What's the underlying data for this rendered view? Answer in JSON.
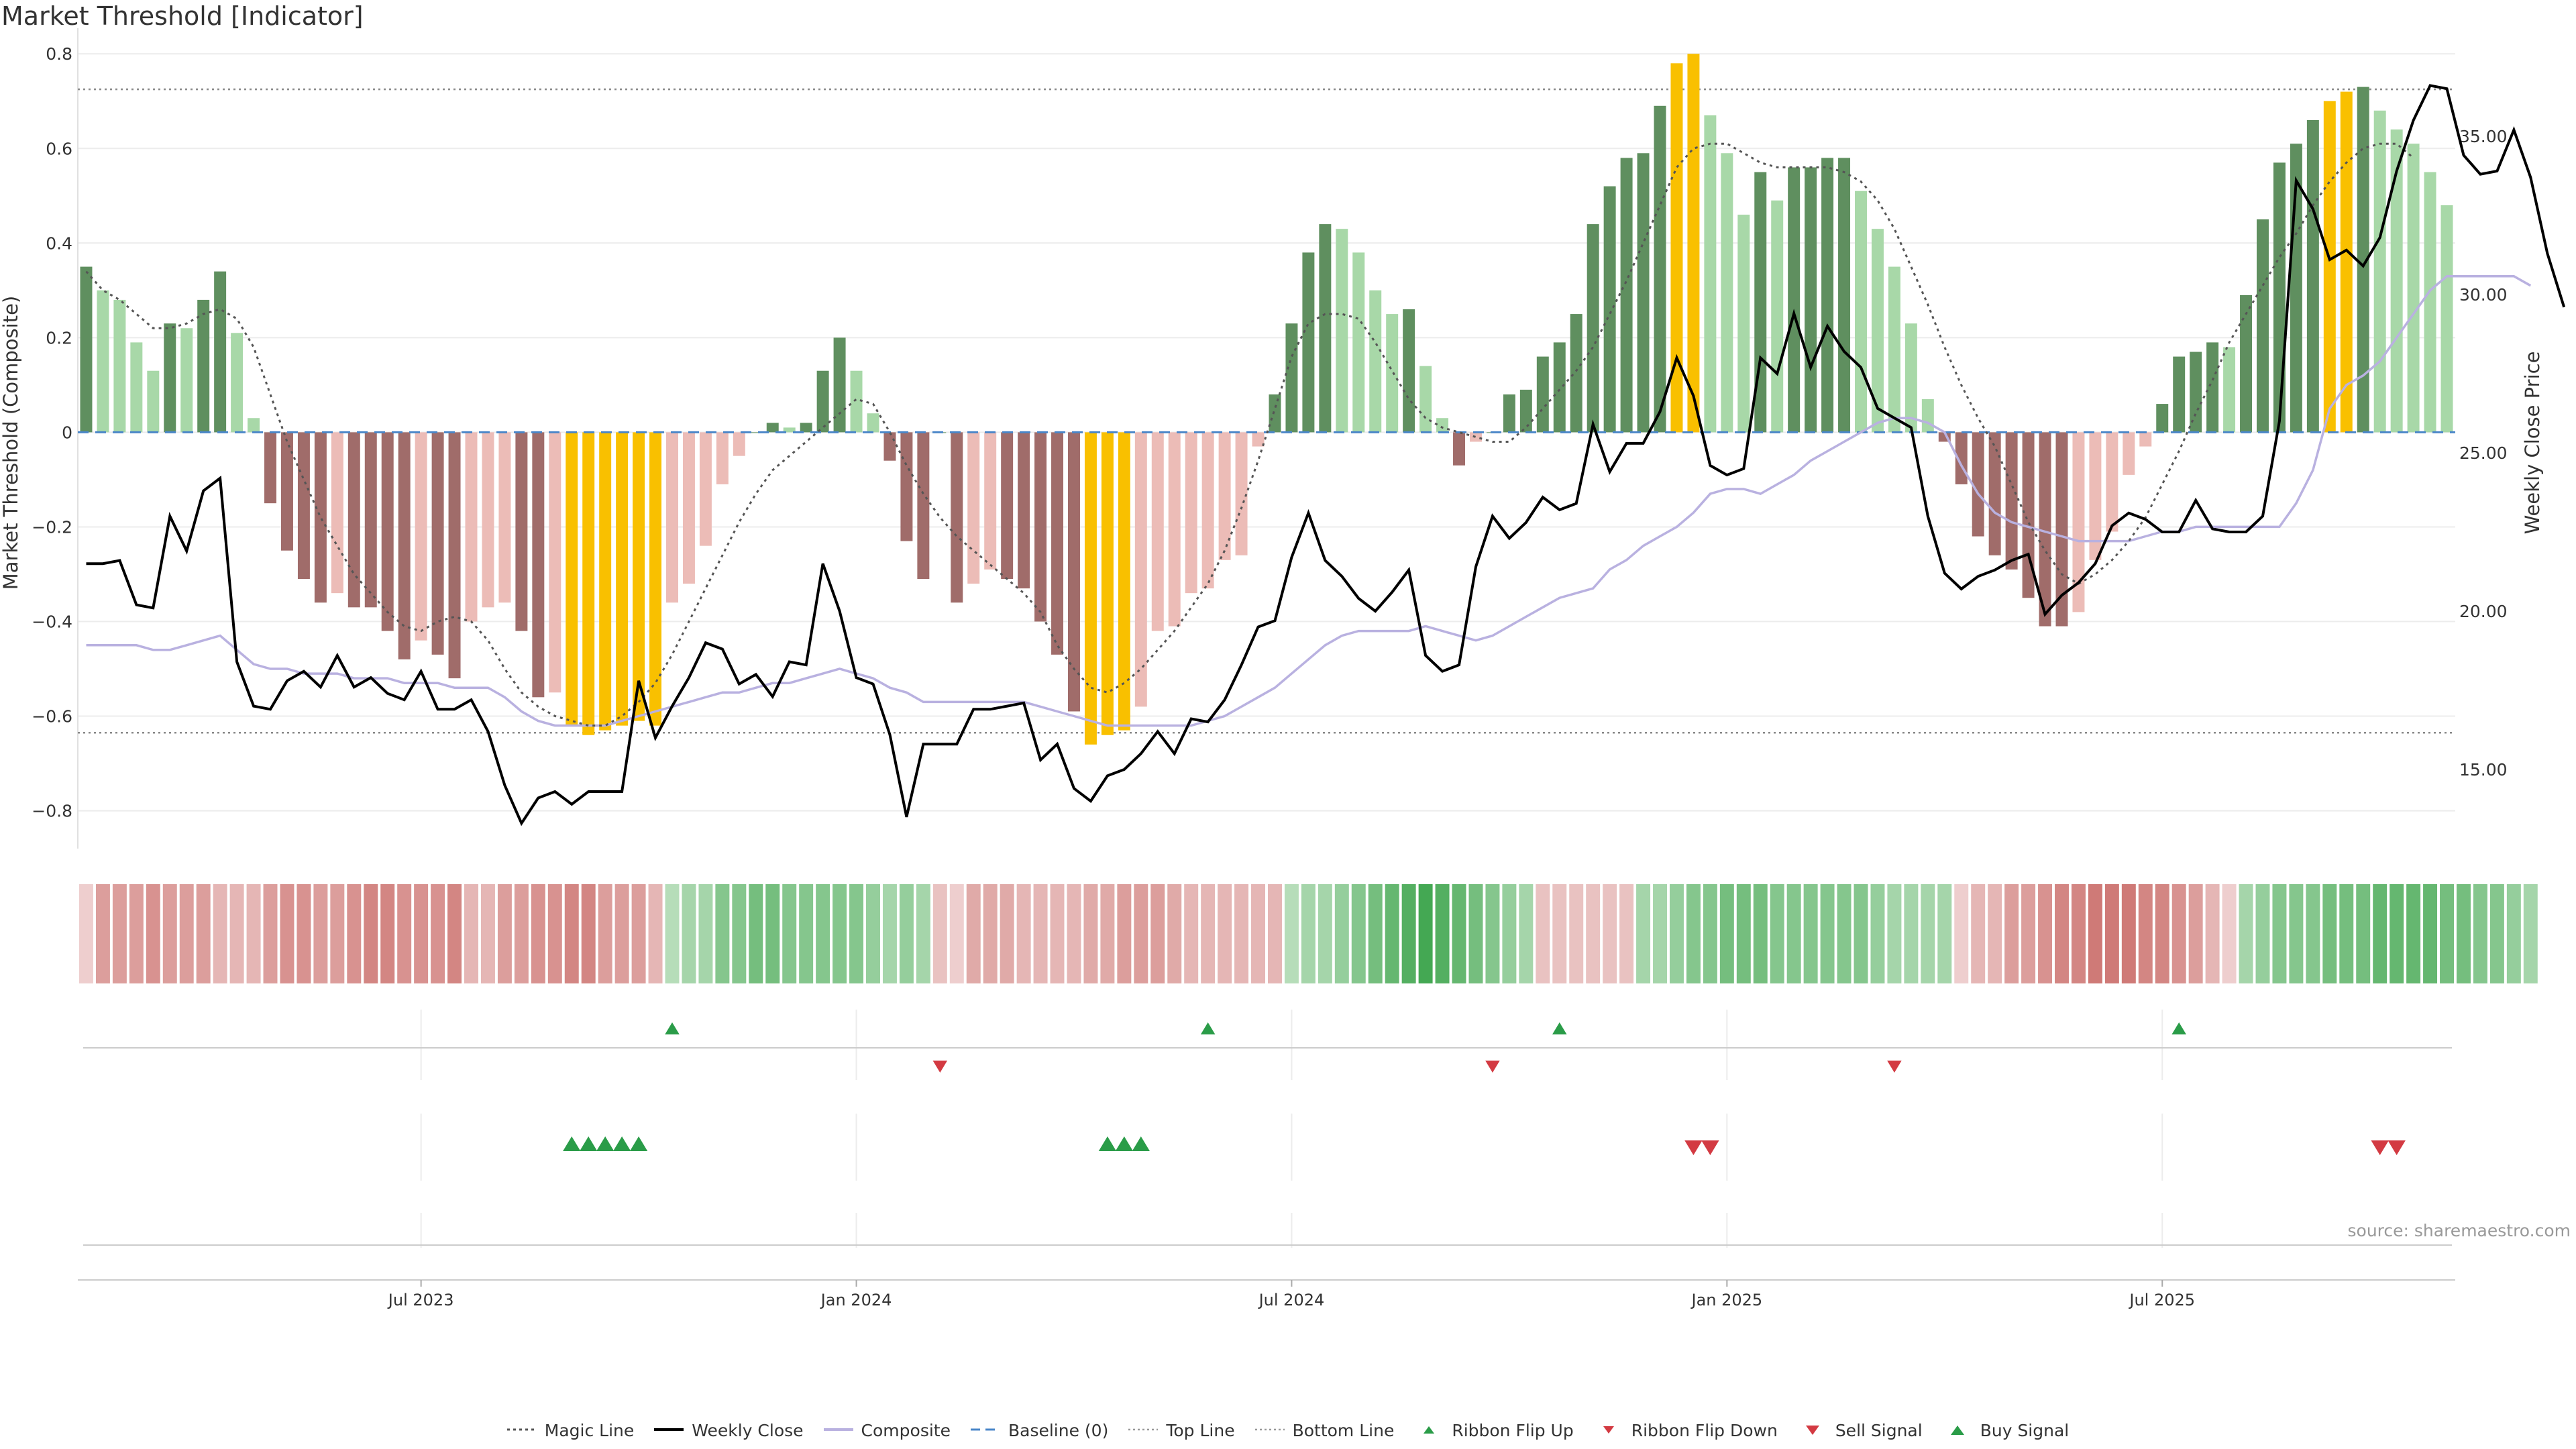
{
  "title": "Market Threshold [Indicator]",
  "source": "source: sharemaestro.com",
  "colors": {
    "dark_green": "#5f8f5f",
    "light_green": "#a8d8a8",
    "dark_red": "#a06c6a",
    "light_red": "#ecbcb7",
    "gold": "#f9c000",
    "buy": "#2a9c48",
    "sell": "#d33a42",
    "composite": "#b9b1e0",
    "baseline": "#4a86c8"
  },
  "legend": [
    {
      "id": "magic",
      "label": "Magic Line",
      "icon": "dotted-line-icon"
    },
    {
      "id": "close",
      "label": "Weekly Close",
      "icon": "solid-line-icon"
    },
    {
      "id": "composite",
      "label": "Composite",
      "icon": "solid-line-icon"
    },
    {
      "id": "baseline",
      "label": "Baseline (0)",
      "icon": "dashed-line-icon"
    },
    {
      "id": "top",
      "label": "Top Line",
      "icon": "dotted-line-icon"
    },
    {
      "id": "bottom",
      "label": "Bottom Line",
      "icon": "dotted-line-icon"
    },
    {
      "id": "flipup",
      "label": "Ribbon Flip Up",
      "icon": "triangle-up-icon"
    },
    {
      "id": "flipdown",
      "label": "Ribbon Flip Down",
      "icon": "triangle-down-icon"
    },
    {
      "id": "sell",
      "label": "Sell Signal",
      "icon": "triangle-down-icon"
    },
    {
      "id": "buy",
      "label": "Buy Signal",
      "icon": "triangle-up-icon"
    }
  ],
  "chart_data": {
    "type": "bar",
    "ylabel": "Market Threshold (Composite)",
    "y2label": "Weekly Close Price",
    "ylim": [
      -0.88,
      0.84
    ],
    "y2lim": [
      12.5,
      38.2
    ],
    "yticks": [
      -0.8,
      -0.6,
      -0.4,
      -0.2,
      0,
      0.2,
      0.4,
      0.6,
      0.8
    ],
    "yticklabels": [
      "−0.8",
      "−0.6",
      "−0.4",
      "−0.2",
      "0",
      "0.2",
      "0.4",
      "0.6",
      "0.8"
    ],
    "y2ticks": [
      15,
      20,
      25,
      30,
      35
    ],
    "y2ticklabels": [
      "15.00",
      "20.00",
      "25.00",
      "30.00",
      "35.00"
    ],
    "top_line": 0.725,
    "bottom_line": -0.635,
    "xlim": [
      0,
      147
    ],
    "xticks": [
      {
        "i": 20,
        "label": "Jul 2023"
      },
      {
        "i": 46,
        "label": "Jan 2024"
      },
      {
        "i": 72,
        "label": "Jul 2024"
      },
      {
        "i": 98,
        "label": "Jan 2025"
      },
      {
        "i": 124,
        "label": "Jul 2025"
      }
    ],
    "bars": [
      0.35,
      0.3,
      0.28,
      0.19,
      0.13,
      0.23,
      0.22,
      0.28,
      0.34,
      0.21,
      0.03,
      -0.15,
      -0.25,
      -0.31,
      -0.36,
      -0.34,
      -0.37,
      -0.37,
      -0.42,
      -0.48,
      -0.44,
      -0.47,
      -0.52,
      -0.4,
      -0.37,
      -0.36,
      -0.42,
      -0.56,
      -0.55,
      -0.62,
      -0.64,
      -0.63,
      -0.62,
      -0.61,
      -0.62,
      -0.36,
      -0.32,
      -0.24,
      -0.11,
      -0.05,
      0.0,
      0.02,
      0.01,
      0.02,
      0.13,
      0.2,
      0.13,
      0.04,
      -0.06,
      -0.23,
      -0.31,
      0.0,
      -0.36,
      -0.32,
      -0.29,
      -0.31,
      -0.33,
      -0.4,
      -0.47,
      -0.59,
      -0.66,
      -0.64,
      -0.63,
      -0.58,
      -0.42,
      -0.41,
      -0.34,
      -0.33,
      -0.27,
      -0.26,
      -0.03,
      0.08,
      0.23,
      0.38,
      0.44,
      0.43,
      0.38,
      0.3,
      0.25,
      0.26,
      0.14,
      0.03,
      -0.07,
      -0.02,
      0.0,
      0.08,
      0.09,
      0.16,
      0.19,
      0.25,
      0.44,
      0.52,
      0.58,
      0.59,
      0.69,
      0.78,
      0.8,
      0.67,
      0.59,
      0.46,
      0.55,
      0.49,
      0.56,
      0.56,
      0.58,
      0.58,
      0.51,
      0.43,
      0.35,
      0.23,
      0.07,
      -0.02,
      -0.11,
      -0.22,
      -0.26,
      -0.29,
      -0.35,
      -0.41,
      -0.41,
      -0.38,
      -0.27,
      -0.21,
      -0.09,
      -0.03,
      0.06,
      0.16,
      0.17,
      0.19,
      0.18,
      0.29,
      0.45,
      0.57,
      0.61,
      0.66,
      0.7,
      0.72,
      0.73,
      0.68,
      0.64,
      0.61,
      0.55,
      0.48
    ],
    "gold_indices": [
      29,
      30,
      31,
      32,
      33,
      34,
      60,
      61,
      62,
      95,
      96,
      134,
      135
    ],
    "magic_line": [
      0.34,
      0.3,
      0.28,
      0.25,
      0.22,
      0.22,
      0.23,
      0.25,
      0.26,
      0.24,
      0.18,
      0.08,
      -0.02,
      -0.1,
      -0.18,
      -0.24,
      -0.3,
      -0.34,
      -0.38,
      -0.41,
      -0.42,
      -0.4,
      -0.39,
      -0.4,
      -0.44,
      -0.5,
      -0.55,
      -0.58,
      -0.6,
      -0.61,
      -0.62,
      -0.62,
      -0.6,
      -0.57,
      -0.53,
      -0.47,
      -0.4,
      -0.33,
      -0.26,
      -0.19,
      -0.13,
      -0.08,
      -0.05,
      -0.02,
      0.01,
      0.04,
      0.07,
      0.06,
      0.0,
      -0.07,
      -0.13,
      -0.18,
      -0.22,
      -0.25,
      -0.28,
      -0.31,
      -0.34,
      -0.38,
      -0.45,
      -0.5,
      -0.54,
      -0.55,
      -0.53,
      -0.5,
      -0.46,
      -0.42,
      -0.37,
      -0.32,
      -0.25,
      -0.16,
      -0.06,
      0.05,
      0.16,
      0.23,
      0.25,
      0.25,
      0.24,
      0.19,
      0.13,
      0.07,
      0.03,
      0.01,
      0.0,
      -0.01,
      -0.02,
      -0.02,
      0.01,
      0.05,
      0.09,
      0.13,
      0.18,
      0.25,
      0.32,
      0.4,
      0.48,
      0.56,
      0.6,
      0.61,
      0.61,
      0.59,
      0.57,
      0.56,
      0.56,
      0.56,
      0.56,
      0.55,
      0.53,
      0.49,
      0.43,
      0.35,
      0.27,
      0.18,
      0.1,
      0.03,
      -0.03,
      -0.11,
      -0.19,
      -0.25,
      -0.3,
      -0.32,
      -0.3,
      -0.27,
      -0.23,
      -0.18,
      -0.11,
      -0.04,
      0.04,
      0.11,
      0.19,
      0.25,
      0.31,
      0.37,
      0.42,
      0.48,
      0.53,
      0.57,
      0.6,
      0.61,
      0.61,
      0.58
    ],
    "weekly_close": [
      21.5,
      21.5,
      21.6,
      20.2,
      20.1,
      23.0,
      21.9,
      23.8,
      24.2,
      18.4,
      17.0,
      16.9,
      17.8,
      18.1,
      17.6,
      18.6,
      17.6,
      17.9,
      17.4,
      17.2,
      18.1,
      16.9,
      16.9,
      17.2,
      16.2,
      14.5,
      13.3,
      14.1,
      14.3,
      13.9,
      14.3,
      14.3,
      14.3,
      17.8,
      16.0,
      17.0,
      17.9,
      19.0,
      18.8,
      17.7,
      18.0,
      17.3,
      18.4,
      18.3,
      21.5,
      20.0,
      17.9,
      17.7,
      16.1,
      13.5,
      15.8,
      15.8,
      15.8,
      16.9,
      16.9,
      17.0,
      17.1,
      15.3,
      15.8,
      14.4,
      14.0,
      14.8,
      15.0,
      15.5,
      16.2,
      15.5,
      16.6,
      16.5,
      17.2,
      18.3,
      19.5,
      19.7,
      21.7,
      23.1,
      21.6,
      21.1,
      20.4,
      20.0,
      20.6,
      21.3,
      18.6,
      18.1,
      18.3,
      21.4,
      23.0,
      22.3,
      22.8,
      23.6,
      23.2,
      23.4,
      25.9,
      24.4,
      25.3,
      25.3,
      26.3,
      28.0,
      26.8,
      24.6,
      24.3,
      24.5,
      28.0,
      27.5,
      29.4,
      27.7,
      29.0,
      28.2,
      27.7,
      26.4,
      26.1,
      25.8,
      23.0,
      21.2,
      20.7,
      21.1,
      21.3,
      21.6,
      21.8,
      19.9,
      20.5,
      20.9,
      21.5,
      22.7,
      23.1,
      22.9,
      22.5,
      22.5,
      23.5,
      22.6,
      22.5,
      22.5,
      23.0,
      26.0,
      33.6,
      32.7,
      31.1,
      31.4,
      30.9,
      31.8,
      33.9,
      35.5,
      36.6,
      36.5,
      34.4,
      33.8,
      33.9,
      35.2,
      33.7,
      31.3,
      29.6
    ],
    "composite_line": [
      -0.45,
      -0.45,
      -0.45,
      -0.45,
      -0.46,
      -0.46,
      -0.45,
      -0.44,
      -0.43,
      -0.46,
      -0.49,
      -0.5,
      -0.5,
      -0.51,
      -0.51,
      -0.51,
      -0.52,
      -0.52,
      -0.52,
      -0.53,
      -0.53,
      -0.53,
      -0.54,
      -0.54,
      -0.54,
      -0.56,
      -0.59,
      -0.61,
      -0.62,
      -0.62,
      -0.62,
      -0.62,
      -0.61,
      -0.6,
      -0.59,
      -0.58,
      -0.57,
      -0.56,
      -0.55,
      -0.55,
      -0.54,
      -0.53,
      -0.53,
      -0.52,
      -0.51,
      -0.5,
      -0.51,
      -0.52,
      -0.54,
      -0.55,
      -0.57,
      -0.57,
      -0.57,
      -0.57,
      -0.57,
      -0.57,
      -0.57,
      -0.58,
      -0.59,
      -0.6,
      -0.61,
      -0.62,
      -0.62,
      -0.62,
      -0.62,
      -0.62,
      -0.62,
      -0.61,
      -0.6,
      -0.58,
      -0.56,
      -0.54,
      -0.51,
      -0.48,
      -0.45,
      -0.43,
      -0.42,
      -0.42,
      -0.42,
      -0.42,
      -0.41,
      -0.42,
      -0.43,
      -0.44,
      -0.43,
      -0.41,
      -0.39,
      -0.37,
      -0.35,
      -0.34,
      -0.33,
      -0.29,
      -0.27,
      -0.24,
      -0.22,
      -0.2,
      -0.17,
      -0.13,
      -0.12,
      -0.12,
      -0.13,
      -0.11,
      -0.09,
      -0.06,
      -0.04,
      -0.02,
      0.0,
      0.02,
      0.03,
      0.03,
      0.02,
      0.0,
      -0.07,
      -0.13,
      -0.17,
      -0.19,
      -0.2,
      -0.21,
      -0.22,
      -0.23,
      -0.23,
      -0.23,
      -0.23,
      -0.22,
      -0.21,
      -0.21,
      -0.2,
      -0.2,
      -0.2,
      -0.2,
      -0.2,
      -0.2,
      -0.15,
      -0.08,
      0.05,
      0.1,
      0.12,
      0.15,
      0.2,
      0.25,
      0.3,
      0.33,
      0.33,
      0.33,
      0.33,
      0.33,
      0.31
    ],
    "ribbon": [
      -0.1,
      -0.5,
      -0.5,
      -0.5,
      -0.6,
      -0.5,
      -0.5,
      -0.5,
      -0.3,
      -0.3,
      -0.3,
      -0.5,
      -0.6,
      -0.6,
      -0.5,
      -0.5,
      -0.6,
      -0.7,
      -0.7,
      -0.6,
      -0.6,
      -0.6,
      -0.7,
      -0.3,
      -0.3,
      -0.5,
      -0.5,
      -0.6,
      -0.6,
      -0.7,
      -0.7,
      -0.5,
      -0.5,
      -0.5,
      -0.3,
      0.2,
      0.3,
      0.3,
      0.5,
      0.5,
      0.6,
      0.6,
      0.5,
      0.5,
      0.5,
      0.5,
      0.5,
      0.4,
      0.3,
      0.4,
      0.3,
      -0.2,
      -0.1,
      -0.4,
      -0.4,
      -0.4,
      -0.3,
      -0.3,
      -0.3,
      -0.3,
      -0.4,
      -0.4,
      -0.5,
      -0.5,
      -0.5,
      -0.4,
      -0.3,
      -0.3,
      -0.3,
      -0.3,
      -0.3,
      -0.3,
      0.2,
      0.3,
      0.3,
      0.4,
      0.5,
      0.6,
      0.7,
      0.8,
      0.9,
      0.8,
      0.7,
      0.6,
      0.5,
      0.4,
      0.3,
      -0.2,
      -0.2,
      -0.2,
      -0.2,
      -0.2,
      -0.2,
      0.3,
      0.3,
      0.4,
      0.5,
      0.5,
      0.6,
      0.6,
      0.6,
      0.5,
      0.5,
      0.5,
      0.5,
      0.5,
      0.5,
      0.4,
      0.3,
      0.3,
      0.3,
      0.3,
      -0.1,
      -0.3,
      -0.3,
      -0.5,
      -0.5,
      -0.6,
      -0.7,
      -0.7,
      -0.8,
      -0.8,
      -0.8,
      -0.7,
      -0.7,
      -0.6,
      -0.5,
      -0.3,
      -0.1,
      0.3,
      0.4,
      0.5,
      0.5,
      0.5,
      0.6,
      0.6,
      0.6,
      0.7,
      0.7,
      0.7,
      0.7,
      0.6,
      0.6,
      0.5,
      0.5,
      0.4,
      0.3
    ],
    "flip_up_indices": [
      35,
      67,
      88,
      125
    ],
    "flip_down_indices": [
      51,
      84,
      108
    ],
    "buy_indices": [
      29,
      30,
      31,
      32,
      33,
      61,
      62,
      63
    ],
    "sell_indices": [
      96,
      97,
      137,
      138
    ]
  }
}
